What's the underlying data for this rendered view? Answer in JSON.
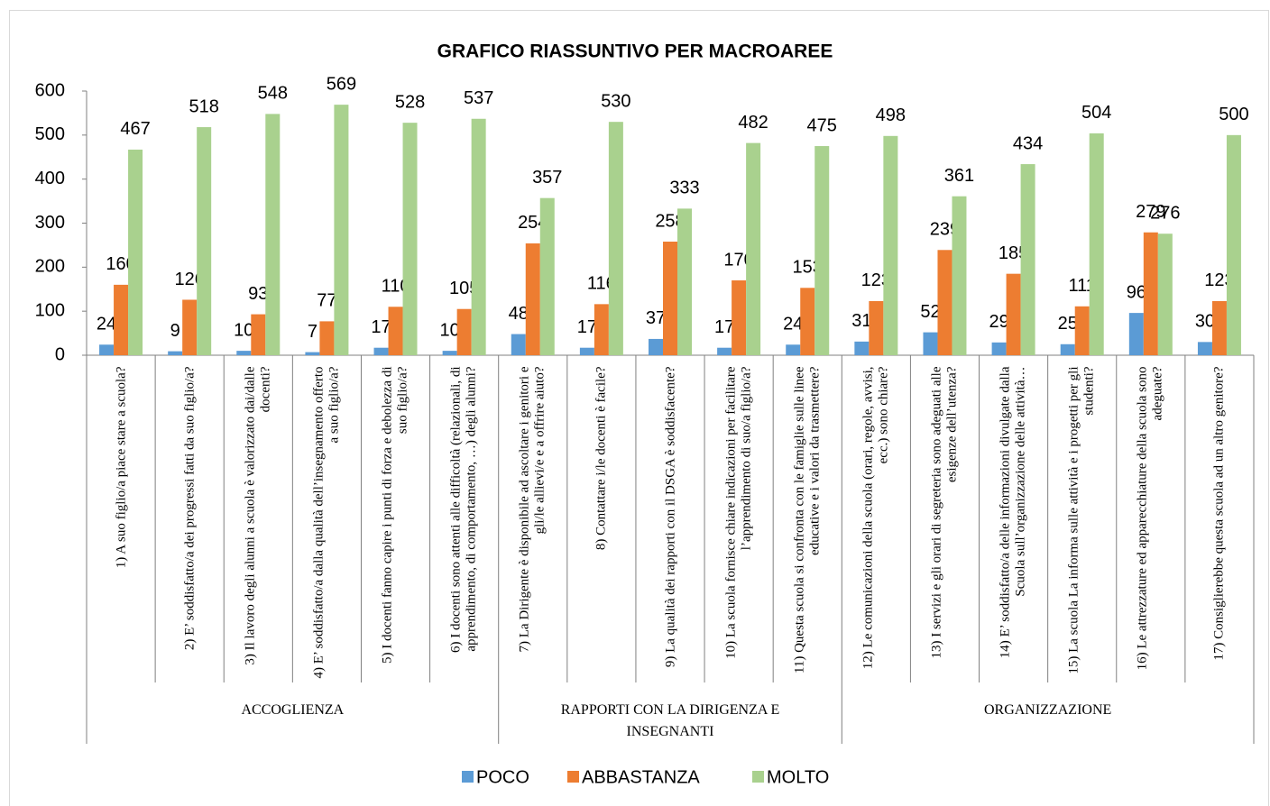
{
  "chart_data": {
    "type": "bar",
    "title": "GRAFICO RIASSUNTIVO PER MACROAREE",
    "groups": [
      {
        "label": "ACCOGLIENZA",
        "categories": [
          "1) A suo figlio/a piace stare a scuola?",
          "2) E’ soddisfatto/a dei progressi fatti da suo figlio/a?",
          "3) Il lavoro degli alunni a scuola è valorizzato dai/dalle docenti?",
          "4) E’ soddisfatto/a dalla qualità dell’insegnamento offerto a suo figlio/a?",
          "5) I docenti fanno capire i punti di forza e debolezza di suo figlio/a?",
          "6) I docenti sono attenti alle difficoltà (relazionali, di apprendimento, di comportamento, …) degli alunni?"
        ]
      },
      {
        "label": "RAPPORTI CON LA DIRIGENZA E INSEGNANTI",
        "categories": [
          "7) La Dirigente è disponibile ad ascoltare i genitori e gli/le allievi/e e a offrire aiuto?",
          "8) Contattare i/le docenti è facile?",
          "9) La qualità dei rapporti con il DSGA è soddisfacente?",
          "10) La scuola fornisce chiare indicazioni per facilitare l’apprendimento di suo/a figlio/a?",
          "11) Questa scuola si confronta con le famiglie sulle linee educative e i valori da trasmettere?"
        ]
      },
      {
        "label": "ORGANIZZAZIONE",
        "categories": [
          "12) Le comunicazioni della scuola (orari, regole, avvisi, ecc.) sono chiare?",
          "13) I servizi e gli orari di segreteria sono adeguati alle esigenze dell’utenza?",
          "14) E’ soddisfatto/a delle informazioni divulgate dalla Scuola sull’organizzazione delle attività…",
          "15) La scuola La informa sulle attività e i progetti per gli studenti?",
          "16) Le attrezzature ed apparecchiature della scuola sono adeguate?",
          "17) Consiglierebbe questa scuola ad un altro genitore?"
        ]
      }
    ],
    "series": [
      {
        "name": "POCO",
        "color": "#5b9bd5",
        "values": [
          24,
          9,
          10,
          7,
          17,
          10,
          48,
          17,
          37,
          17,
          24,
          31,
          52,
          29,
          25,
          96,
          30
        ]
      },
      {
        "name": "ABBASTANZA",
        "color": "#ed7d31",
        "values": [
          160,
          126,
          93,
          77,
          110,
          105,
          254,
          116,
          258,
          170,
          153,
          123,
          239,
          185,
          111,
          279,
          123
        ]
      },
      {
        "name": "MOLTO",
        "color": "#a9d18e",
        "values": [
          467,
          518,
          548,
          569,
          528,
          537,
          357,
          530,
          333,
          482,
          475,
          498,
          361,
          434,
          504,
          276,
          500
        ]
      }
    ],
    "ylim": [
      0,
      600
    ],
    "yticks": [
      0,
      100,
      200,
      300,
      400,
      500,
      600
    ],
    "grid": false,
    "legend": "bottom"
  }
}
